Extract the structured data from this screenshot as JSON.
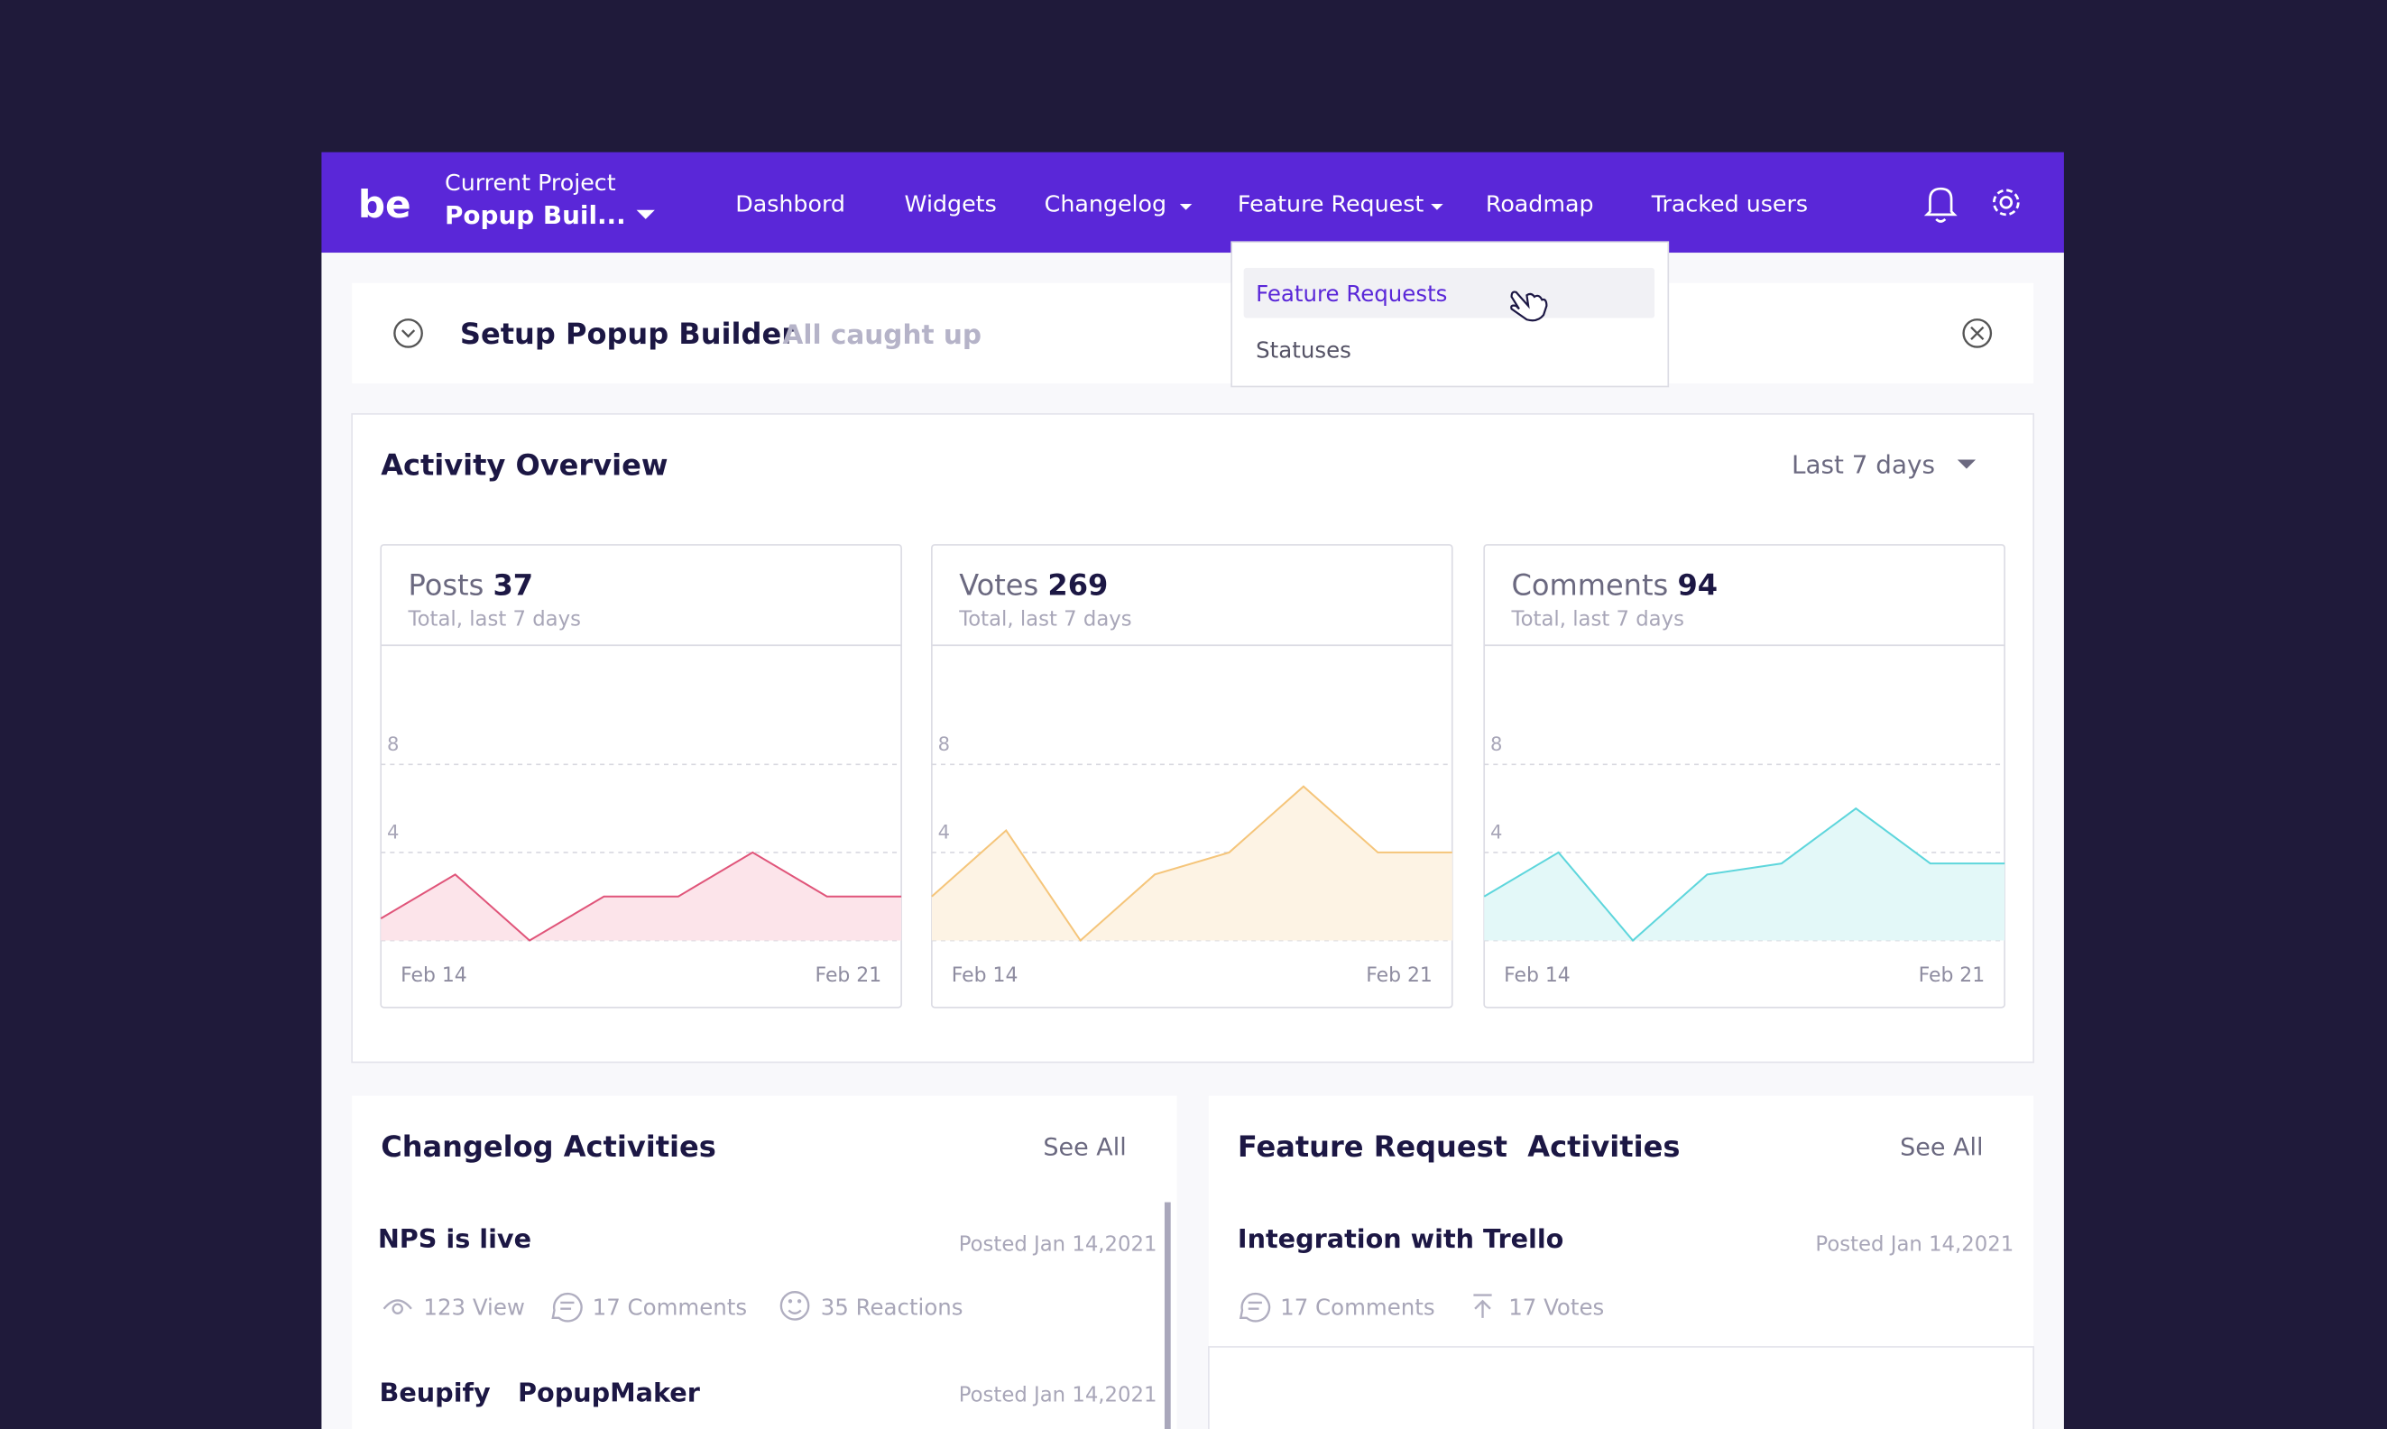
{
  "nav": {
    "logo": "be",
    "project_label": "Current Project",
    "project_name": "Popup Buil...",
    "items": [
      "Dashbord",
      "Widgets",
      "Changelog",
      "Feature Request",
      "Roadmap",
      "Tracked users"
    ],
    "dropdown": [
      "Feature Requests",
      "Statuses"
    ]
  },
  "setup": {
    "title": "Setup Popup Builder",
    "status": "All caught up"
  },
  "activity": {
    "title": "Activity Overview",
    "range": "Last 7 days",
    "cards": [
      {
        "label": "Posts",
        "total": "37",
        "subtitle": "Total, last 7 days",
        "chart": {
          "type": "area",
          "color": "#e0557a",
          "fill": "#fce4ea",
          "categories": [
            "Feb 14",
            null,
            null,
            null,
            null,
            null,
            null,
            "Feb 21"
          ],
          "values": [
            1,
            3,
            0,
            2,
            2,
            4,
            2,
            2
          ],
          "ylim": [
            0,
            13
          ],
          "yticks": [
            0,
            4,
            8
          ]
        }
      },
      {
        "label": "Votes",
        "total": "269",
        "subtitle": "Total, last 7 days",
        "chart": {
          "type": "area",
          "color": "#f5c57a",
          "fill": "#fdf3e4",
          "categories": [
            "Feb 14",
            null,
            null,
            null,
            null,
            null,
            null,
            "Feb 21"
          ],
          "values": [
            2,
            5,
            0,
            3,
            4,
            7,
            4,
            4
          ],
          "ylim": [
            0,
            13
          ],
          "yticks": [
            0,
            4,
            8
          ]
        }
      },
      {
        "label": "Comments",
        "total": "94",
        "subtitle": "Total, last 7 days",
        "chart": {
          "type": "area",
          "color": "#5ed6dc",
          "fill": "#e3f8f8",
          "categories": [
            "Feb 14",
            null,
            null,
            null,
            null,
            null,
            null,
            "Feb 21"
          ],
          "values": [
            2,
            4,
            0,
            3,
            3.5,
            6,
            3.5,
            3.5
          ],
          "ylim": [
            0,
            13
          ],
          "yticks": [
            0,
            4,
            8
          ]
        }
      }
    ]
  },
  "changelog": {
    "title": "Changelog Activities",
    "see_all": "See All",
    "posts": [
      {
        "title": "NPS is live",
        "date": "Posted Jan 14,2021",
        "stats": [
          "123 View",
          "17 Comments",
          "35 Reactions"
        ]
      },
      {
        "title": "Beupify",
        "tag": "PopupMaker",
        "date": "Posted Jan 14,2021"
      }
    ]
  },
  "feature": {
    "title": "Feature Request  Activities",
    "see_all": "See All",
    "posts": [
      {
        "title": "Integration with Trello",
        "date": "Posted Jan 14,2021",
        "stats": [
          "17 Comments",
          "17 Votes"
        ]
      }
    ]
  }
}
